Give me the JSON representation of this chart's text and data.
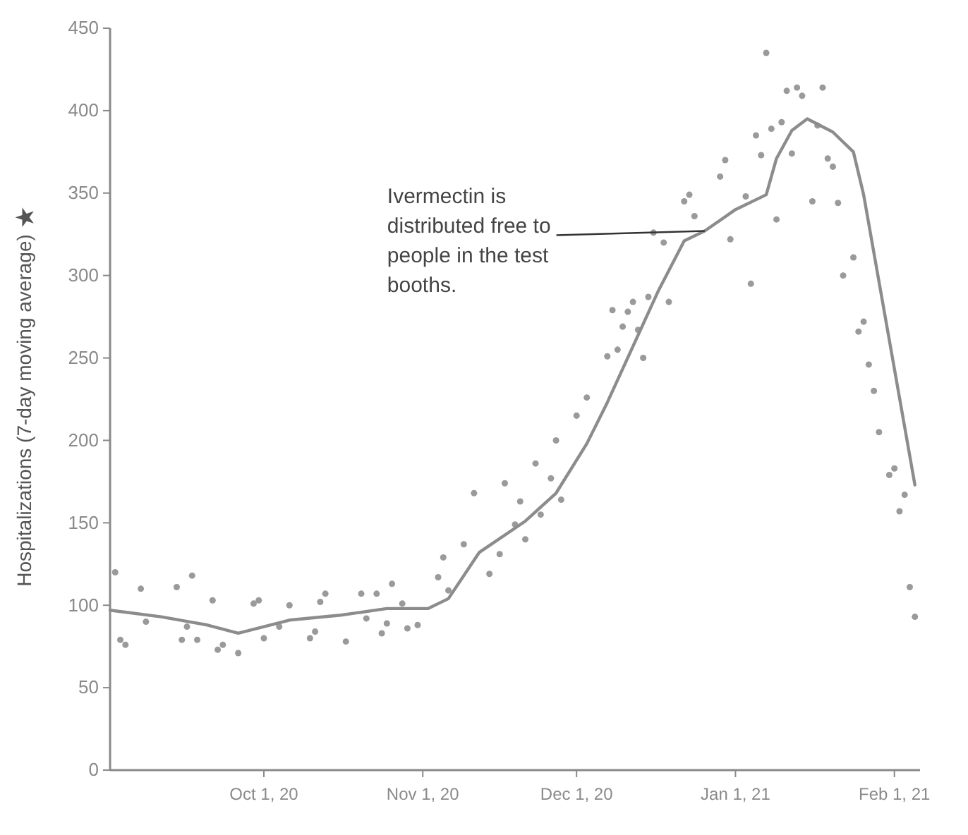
{
  "chart_data": {
    "type": "scatter",
    "ylabel": "Hospitalizations (7-day moving average)",
    "xlim": [
      "2020-09-01",
      "2021-02-06"
    ],
    "xticks": [
      {
        "value": "2020-10-01",
        "label": "Oct 1, 20"
      },
      {
        "value": "2020-11-01",
        "label": "Nov 1, 20"
      },
      {
        "value": "2020-12-01",
        "label": "Dec 1, 20"
      },
      {
        "value": "2021-01-01",
        "label": "Jan 1, 21"
      },
      {
        "value": "2021-02-01",
        "label": "Feb 1, 21"
      }
    ],
    "ylim": [
      0,
      450
    ],
    "yticks": [
      0,
      50,
      100,
      150,
      200,
      250,
      300,
      350,
      400,
      450
    ],
    "grid": false,
    "annotations": [
      {
        "text": "Ivermectin is distributed free to people in the test booths.",
        "x": "2020-12-26",
        "y": 327
      }
    ],
    "series": [
      {
        "color": "#9a9a9a",
        "marker": "circle",
        "x": [
          "2020-09-02",
          "2020-09-03",
          "2020-09-04",
          "2020-09-07",
          "2020-09-08",
          "2020-09-14",
          "2020-09-15",
          "2020-09-16",
          "2020-09-17",
          "2020-09-18",
          "2020-09-21",
          "2020-09-22",
          "2020-09-23",
          "2020-09-26",
          "2020-09-29",
          "2020-09-30",
          "2020-10-01",
          "2020-10-04",
          "2020-10-06",
          "2020-10-10",
          "2020-10-11",
          "2020-10-12",
          "2020-10-13",
          "2020-10-17",
          "2020-10-20",
          "2020-10-21",
          "2020-10-23",
          "2020-10-24",
          "2020-10-25",
          "2020-10-26",
          "2020-10-28",
          "2020-10-29",
          "2020-10-31",
          "2020-11-04",
          "2020-11-05",
          "2020-11-06",
          "2020-11-09",
          "2020-11-11",
          "2020-11-14",
          "2020-11-16",
          "2020-11-17",
          "2020-11-19",
          "2020-11-20",
          "2020-11-21",
          "2020-11-23",
          "2020-11-24",
          "2020-11-26",
          "2020-11-27",
          "2020-11-28",
          "2020-12-01",
          "2020-12-03",
          "2020-12-07",
          "2020-12-08",
          "2020-12-09",
          "2020-12-10",
          "2020-12-11",
          "2020-12-12",
          "2020-12-13",
          "2020-12-14",
          "2020-12-15",
          "2020-12-16",
          "2020-12-18",
          "2020-12-19",
          "2020-12-22",
          "2020-12-23",
          "2020-12-24",
          "2020-12-29",
          "2020-12-30",
          "2020-12-31",
          "2021-01-03",
          "2021-01-04",
          "2021-01-05",
          "2021-01-06",
          "2021-01-07",
          "2021-01-08",
          "2021-01-09",
          "2021-01-10",
          "2021-01-11",
          "2021-01-12",
          "2021-01-13",
          "2021-01-14",
          "2021-01-16",
          "2021-01-17",
          "2021-01-18",
          "2021-01-19",
          "2021-01-20",
          "2021-01-21",
          "2021-01-22",
          "2021-01-24",
          "2021-01-25",
          "2021-01-26",
          "2021-01-27",
          "2021-01-28",
          "2021-01-29",
          "2021-01-31",
          "2021-02-01",
          "2021-02-02",
          "2021-02-03",
          "2021-02-04",
          "2021-02-05"
        ],
        "values": [
          120,
          79,
          76,
          110,
          90,
          111,
          79,
          87,
          118,
          79,
          103,
          73,
          76,
          71,
          101,
          103,
          80,
          87,
          100,
          80,
          84,
          102,
          107,
          78,
          107,
          92,
          107,
          83,
          89,
          113,
          101,
          86,
          88,
          117,
          129,
          109,
          137,
          168,
          119,
          131,
          174,
          149,
          163,
          140,
          186,
          155,
          177,
          200,
          164,
          215,
          226,
          251,
          279,
          255,
          269,
          278,
          284,
          267,
          250,
          287,
          326,
          320,
          284,
          345,
          349,
          336,
          360,
          370,
          322,
          348,
          295,
          385,
          373,
          435,
          389,
          334,
          393,
          412,
          374,
          414,
          409,
          345,
          391,
          414,
          371,
          366,
          344,
          300,
          311,
          266,
          272,
          246,
          230,
          205,
          179,
          183,
          157,
          167,
          111,
          93
        ]
      },
      {
        "type": "line",
        "color": "#8c8c8c",
        "line_style": "solid",
        "x": [
          "2020-09-01",
          "2020-09-11",
          "2020-09-20",
          "2020-09-26",
          "2020-10-06",
          "2020-10-16",
          "2020-10-25",
          "2020-11-02",
          "2020-11-06",
          "2020-11-12",
          "2020-11-21",
          "2020-11-27",
          "2020-12-03",
          "2020-12-07",
          "2020-12-17",
          "2020-12-22",
          "2020-12-26",
          "2021-01-01",
          "2021-01-07",
          "2021-01-09",
          "2021-01-12",
          "2021-01-15",
          "2021-01-20",
          "2021-01-24",
          "2021-01-26",
          "2021-02-05"
        ],
        "values": [
          97,
          93,
          88,
          83,
          91,
          94,
          98,
          98,
          104,
          132,
          151,
          168,
          198,
          223,
          291,
          321,
          327,
          340,
          349,
          371,
          388,
          395,
          387,
          375,
          349,
          173
        ]
      }
    ]
  }
}
